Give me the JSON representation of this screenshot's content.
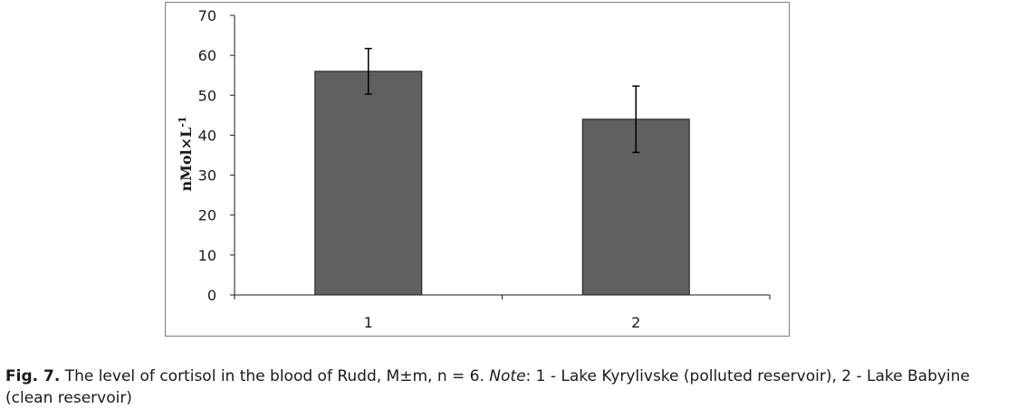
{
  "chart_data": {
    "type": "bar",
    "categories": [
      "1",
      "2"
    ],
    "values": [
      56,
      44
    ],
    "errors": [
      5.7,
      8.3
    ],
    "ylabel_main": "nMol×L",
    "ylabel_sup": "-1",
    "ylim": [
      0,
      70
    ],
    "yticks": [
      "0",
      "10",
      "20",
      "30",
      "40",
      "50",
      "60",
      "70"
    ],
    "grid": false,
    "bar_color": "#606060"
  },
  "caption": {
    "fig_label": "Fig. 7.",
    "text1": " The level of cortisol in the blood of Rudd, M±m, n = 6. ",
    "note_label": "Note",
    "text2": ": 1 - Lake Kyrylivske (polluted reservoir), 2 - Lake Babyine (clean reservoir)"
  }
}
